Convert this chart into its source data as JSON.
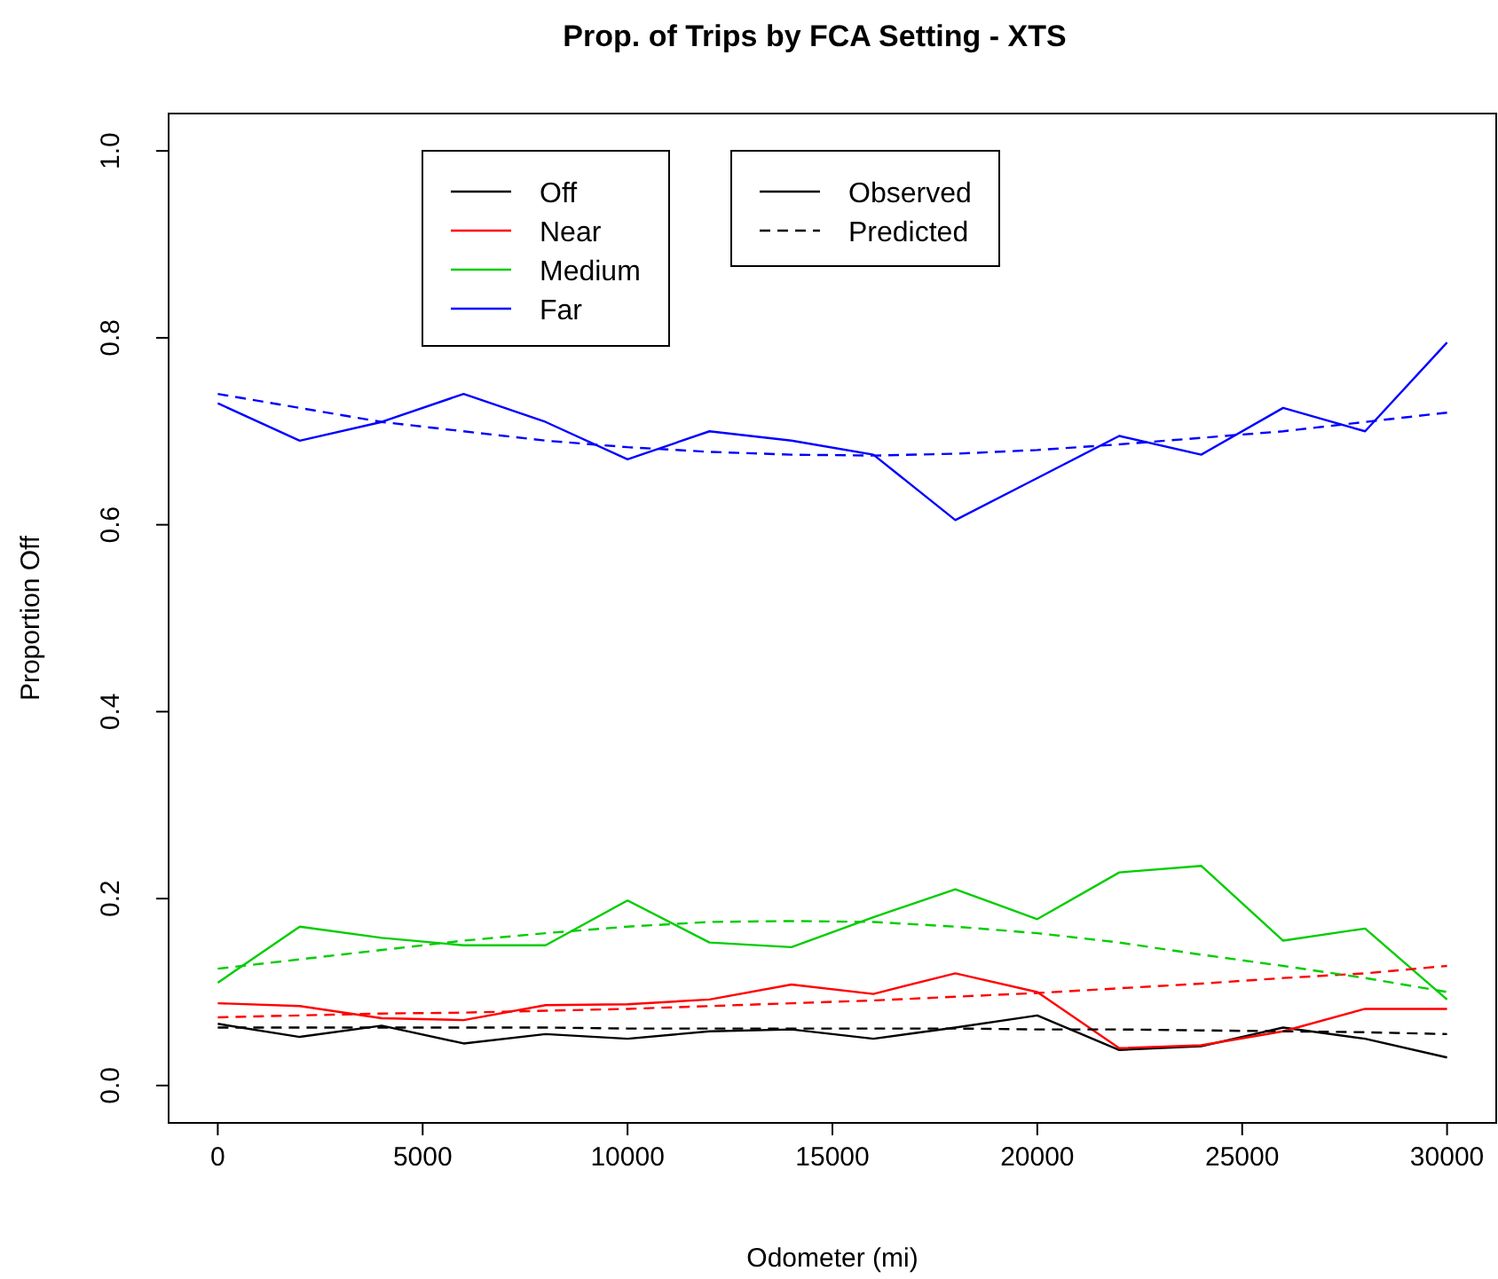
{
  "chart_data": {
    "type": "line",
    "title": "Prop. of Trips by FCA Setting - XTS",
    "xlabel": "Odometer (mi)",
    "ylabel": "Proportion Off",
    "x": [
      0,
      2000,
      4000,
      6000,
      8000,
      10000,
      12000,
      14000,
      16000,
      18000,
      20000,
      22000,
      24000,
      26000,
      28000,
      30000
    ],
    "xlim": [
      -1200,
      31200
    ],
    "ylim": [
      -0.04,
      1.04
    ],
    "xticks": [
      0,
      5000,
      10000,
      15000,
      20000,
      25000,
      30000
    ],
    "yticks": [
      {
        "value": 0,
        "label": "0.0"
      },
      {
        "value": 0.2,
        "label": "0.2"
      },
      {
        "value": 0.4,
        "label": "0.4"
      },
      {
        "value": 0.6,
        "label": "0.6"
      },
      {
        "value": 0.8,
        "label": "0.8"
      },
      {
        "value": 1,
        "label": "1.0"
      }
    ],
    "grid": false,
    "legend": "top left",
    "marker": "none",
    "annotations": [
      "Observed",
      "Predicted"
    ],
    "series": [
      {
        "name": "Off",
        "color": "#000000",
        "line_style": "solid",
        "values": [
          0.066,
          0.052,
          0.064,
          0.045,
          0.055,
          0.05,
          0.058,
          0.06,
          0.05,
          0.062,
          0.075,
          0.038,
          0.042,
          0.062,
          0.05,
          0.03
        ]
      },
      {
        "name": "Near",
        "color": "#ff0000",
        "line_style": "solid",
        "values": [
          0.088,
          0.085,
          0.072,
          0.07,
          0.086,
          0.087,
          0.092,
          0.108,
          0.098,
          0.12,
          0.1,
          0.04,
          0.043,
          0.058,
          0.082,
          0.082
        ]
      },
      {
        "name": "Medium",
        "color": "#00cd00",
        "line_style": "solid",
        "values": [
          0.11,
          0.17,
          0.158,
          0.15,
          0.15,
          0.198,
          0.153,
          0.148,
          0.18,
          0.21,
          0.178,
          0.228,
          0.235,
          0.155,
          0.168,
          0.092
        ]
      },
      {
        "name": "Far",
        "color": "#0000ff",
        "line_style": "solid",
        "values": [
          0.73,
          0.69,
          0.71,
          0.74,
          0.71,
          0.67,
          0.7,
          0.69,
          0.675,
          0.605,
          0.65,
          0.695,
          0.675,
          0.725,
          0.7,
          0.795
        ]
      },
      {
        "color": "#000000",
        "line_style": "dashed",
        "values": [
          0.062,
          0.062,
          0.062,
          0.062,
          0.062,
          0.061,
          0.061,
          0.061,
          0.061,
          0.061,
          0.06,
          0.06,
          0.059,
          0.058,
          0.057,
          0.055
        ]
      },
      {
        "color": "#ff0000",
        "line_style": "dashed",
        "values": [
          0.073,
          0.075,
          0.077,
          0.078,
          0.08,
          0.082,
          0.085,
          0.088,
          0.091,
          0.095,
          0.099,
          0.104,
          0.109,
          0.115,
          0.12,
          0.128
        ]
      },
      {
        "color": "#00cd00",
        "line_style": "dashed",
        "values": [
          0.125,
          0.135,
          0.145,
          0.155,
          0.163,
          0.17,
          0.175,
          0.176,
          0.175,
          0.17,
          0.163,
          0.153,
          0.14,
          0.128,
          0.115,
          0.1
        ]
      },
      {
        "color": "#0000ff",
        "line_style": "dashed",
        "values": [
          0.74,
          0.725,
          0.71,
          0.7,
          0.69,
          0.683,
          0.678,
          0.675,
          0.674,
          0.676,
          0.68,
          0.686,
          0.693,
          0.7,
          0.71,
          0.72
        ]
      }
    ]
  }
}
